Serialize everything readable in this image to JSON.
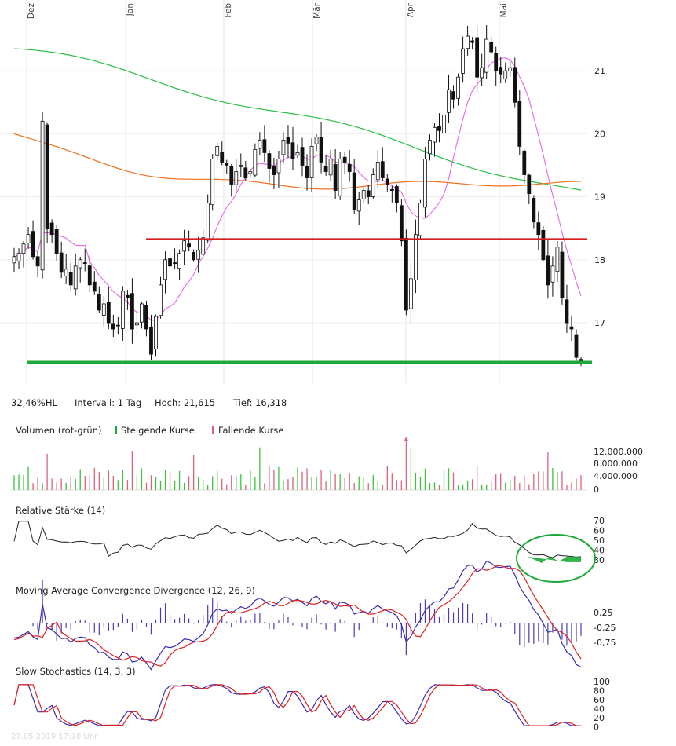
{
  "chart_data": [
    {
      "type": "candlestick",
      "months": [
        "Dez",
        "Jan",
        "Feb",
        "Mär",
        "Apr",
        "Mai"
      ],
      "yticks": [
        17,
        18,
        19,
        20,
        21
      ],
      "ylim": [
        16.25,
        21.85
      ],
      "high": 21.615,
      "low": 16.318,
      "hlines": [
        {
          "value": 18.33,
          "color": "#d81c1c"
        },
        {
          "value": 16.37,
          "color": "#1ea83a"
        }
      ],
      "closes": [
        18.05,
        18.1,
        18.25,
        18.4,
        18.05,
        17.9,
        20.2,
        18.5,
        18.4,
        18.1,
        17.8,
        17.85,
        17.6,
        17.9,
        18.0,
        17.95,
        17.6,
        17.5,
        17.2,
        17.3,
        17.0,
        16.9,
        16.95,
        17.5,
        17.4,
        16.9,
        17.0,
        17.3,
        16.9,
        16.5,
        17.1,
        17.6,
        18.0,
        17.9,
        17.95,
        18.1,
        18.3,
        18.2,
        18.0,
        18.15,
        18.35,
        18.9,
        19.6,
        19.8,
        19.55,
        19.5,
        19.2,
        19.4,
        19.5,
        19.3,
        19.4,
        19.75,
        19.9,
        19.7,
        19.45,
        19.35,
        19.6,
        19.9,
        19.85,
        19.6,
        19.7,
        19.5,
        19.3,
        19.8,
        19.95,
        19.55,
        19.4,
        19.6,
        19.1,
        19.6,
        19.55,
        19.4,
        18.8,
        18.95,
        19.1,
        19.0,
        19.35,
        19.55,
        19.3,
        19.2,
        19.1,
        18.9,
        18.3,
        17.2,
        17.7,
        18.4,
        18.9,
        19.6,
        19.9,
        20.1,
        20.05,
        20.3,
        20.7,
        20.55,
        20.9,
        21.35,
        21.55,
        21.45,
        20.9,
        21.05,
        21.5,
        21.3,
        21.0,
        20.95,
        21.0,
        21.05,
        20.5,
        19.8,
        19.35,
        19.05,
        18.6,
        18.4,
        18.0,
        17.6,
        17.9,
        18.2,
        17.4,
        17.0,
        16.9,
        16.45,
        16.4
      ],
      "ma_green": {
        "from": [
          21.35,
          18.3
        ],
        "to": [
          19.1,
          18.3
        ]
      },
      "ma_orange": {
        "from": [
          20.05,
          18.3
        ],
        "to": [
          19.15,
          18.3
        ]
      },
      "ma_pink": {
        "from": [
          17.65,
          17.65
        ],
        "to": [
          18.7,
          18.7
        ]
      }
    }
  ],
  "stats": {
    "hl": "32,46%HL",
    "interval": "Intervall: 1 Tag",
    "high": "Hoch:  21,615",
    "low": "Tief:  16,318"
  },
  "volume": {
    "title": "Volumen (rot-grün)",
    "rising": "Steigende Kurse",
    "falling": "Fallende Kurse",
    "ticks": [
      "12.000.000",
      "8.000.000",
      "4.000.000",
      "0"
    ]
  },
  "rsi": {
    "title": "Relative Stärke (14)",
    "ticks": [
      "70",
      "60",
      "50",
      "40",
      "30"
    ]
  },
  "macd": {
    "title": "Moving Average Convergence Divergence (12, 26, 9)",
    "ticks": [
      "0,25",
      "-0,25",
      "-0,75"
    ]
  },
  "stoch": {
    "title": "Slow Stochastics (14, 3, 3)",
    "ticks": [
      "100",
      "80",
      "60",
      "40",
      "20",
      "0"
    ]
  },
  "watermark": "27.05.2019 17:30 Uhr",
  "colors": {
    "green": "#1ea83a",
    "red": "#d81c1c",
    "pink": "#e667e6",
    "orange": "#f07020",
    "ma_green": "#28c040",
    "macd_blue": "#3a2bb0",
    "macd_red": "#e02020"
  }
}
